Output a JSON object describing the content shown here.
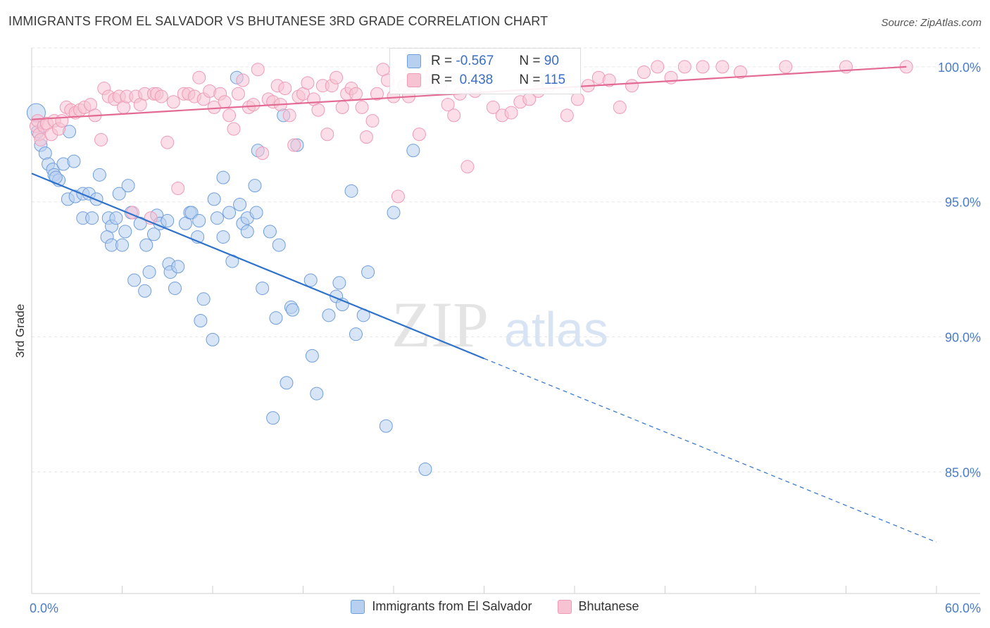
{
  "title": "IMMIGRANTS FROM EL SALVADOR VS BHUTANESE 3RD GRADE CORRELATION CHART",
  "source": "Source: ZipAtlas.com",
  "watermark": {
    "zip": "ZIP",
    "atlas": "atlas"
  },
  "colors": {
    "blue_fill": "#b8d0f0",
    "blue_stroke": "#6f9edb",
    "blue_line": "#2f72cc",
    "pink_fill": "#f7c3d3",
    "pink_stroke": "#ee9bb6",
    "pink_line": "#e36b93",
    "tick": "#4a7cc9",
    "grid": "#e6e6e6"
  },
  "legend_box": {
    "rows": [
      {
        "r_label": "R =",
        "r_value": "-0.567",
        "n_label": "N =",
        "n_value": "90"
      },
      {
        "r_label": "R =",
        "r_value": " 0.438",
        "n_label": "N =",
        "n_value": "115"
      }
    ]
  },
  "chart_data": {
    "type": "scatter",
    "title": "IMMIGRANTS FROM EL SALVADOR VS BHUTANESE 3RD GRADE CORRELATION CHART",
    "xlabel": "",
    "ylabel": "3rd Grade",
    "xlim": [
      0,
      60
    ],
    "ylim": [
      80.5,
      100.7
    ],
    "x_tick_labels": [
      "0.0%",
      "60.0%"
    ],
    "y_ticks": [
      85,
      90,
      95,
      100
    ],
    "y_tick_labels": [
      "85.0%",
      "90.0%",
      "95.0%",
      "100.0%"
    ],
    "grid": "horizontal dashed",
    "legend": "bottom-center",
    "series": [
      {
        "name": "Immigrants from El Salvador",
        "color": "blue",
        "R": -0.567,
        "N": 90,
        "trend": {
          "solid": [
            [
              0,
              96.05
            ],
            [
              30,
              89.2
            ]
          ],
          "dashed": [
            [
              30,
              89.2
            ],
            [
              60,
              82.4
            ]
          ]
        },
        "points": [
          [
            0.3,
            98.3
          ],
          [
            0.4,
            97.6
          ],
          [
            0.6,
            97.1
          ],
          [
            0.9,
            96.8
          ],
          [
            1.1,
            96.4
          ],
          [
            1.4,
            96.2
          ],
          [
            1.5,
            96.0
          ],
          [
            1.8,
            95.8
          ],
          [
            1.6,
            95.9
          ],
          [
            2.1,
            96.4
          ],
          [
            2.8,
            96.5
          ],
          [
            2.4,
            95.1
          ],
          [
            2.9,
            95.2
          ],
          [
            3.4,
            95.3
          ],
          [
            3.8,
            95.3
          ],
          [
            4.3,
            95.1
          ],
          [
            3.4,
            94.4
          ],
          [
            4.0,
            94.4
          ],
          [
            4.5,
            96.0
          ],
          [
            5.1,
            94.4
          ],
          [
            5.3,
            94.1
          ],
          [
            5.6,
            94.4
          ],
          [
            5.0,
            93.7
          ],
          [
            5.3,
            93.4
          ],
          [
            6.0,
            93.4
          ],
          [
            6.2,
            93.9
          ],
          [
            5.8,
            95.3
          ],
          [
            6.4,
            95.6
          ],
          [
            6.6,
            94.6
          ],
          [
            7.2,
            94.2
          ],
          [
            7.6,
            93.4
          ],
          [
            8.1,
            93.8
          ],
          [
            8.3,
            94.5
          ],
          [
            8.5,
            94.2
          ],
          [
            9.0,
            94.3
          ],
          [
            9.1,
            92.7
          ],
          [
            9.2,
            92.4
          ],
          [
            9.5,
            91.8
          ],
          [
            9.7,
            92.6
          ],
          [
            7.8,
            92.4
          ],
          [
            6.8,
            92.1
          ],
          [
            7.5,
            91.7
          ],
          [
            10.2,
            94.2
          ],
          [
            10.5,
            94.6
          ],
          [
            10.6,
            94.6
          ],
          [
            11.1,
            94.3
          ],
          [
            11.0,
            93.7
          ],
          [
            11.4,
            91.4
          ],
          [
            11.2,
            90.6
          ],
          [
            12.0,
            89.9
          ],
          [
            12.1,
            95.1
          ],
          [
            12.3,
            94.4
          ],
          [
            12.7,
            95.9
          ],
          [
            12.7,
            93.7
          ],
          [
            13.1,
            94.6
          ],
          [
            13.3,
            92.8
          ],
          [
            13.6,
            99.6
          ],
          [
            13.8,
            94.9
          ],
          [
            14.0,
            94.2
          ],
          [
            14.3,
            94.4
          ],
          [
            14.3,
            93.9
          ],
          [
            14.8,
            95.6
          ],
          [
            14.9,
            94.6
          ],
          [
            15.0,
            96.9
          ],
          [
            15.3,
            91.8
          ],
          [
            15.8,
            93.9
          ],
          [
            16.0,
            87.0
          ],
          [
            16.2,
            90.7
          ],
          [
            16.4,
            93.4
          ],
          [
            16.7,
            98.2
          ],
          [
            16.9,
            88.3
          ],
          [
            17.2,
            91.1
          ],
          [
            17.3,
            91.0
          ],
          [
            17.6,
            97.1
          ],
          [
            18.5,
            92.1
          ],
          [
            18.6,
            89.3
          ],
          [
            18.9,
            87.9
          ],
          [
            19.7,
            90.8
          ],
          [
            20.2,
            91.5
          ],
          [
            20.4,
            92.0
          ],
          [
            20.6,
            91.2
          ],
          [
            21.2,
            95.4
          ],
          [
            21.5,
            90.1
          ],
          [
            22.0,
            90.8
          ],
          [
            22.3,
            92.4
          ],
          [
            23.5,
            86.7
          ],
          [
            24.0,
            94.6
          ],
          [
            25.3,
            96.9
          ],
          [
            26.1,
            85.1
          ],
          [
            2.5,
            97.6
          ]
        ]
      },
      {
        "name": "Bhutanese",
        "color": "pink",
        "R": 0.438,
        "N": 115,
        "trend": {
          "solid": [
            [
              0,
              98.05
            ],
            [
              58,
              100.0
            ]
          ]
        },
        "points": [
          [
            0.3,
            97.8
          ],
          [
            0.4,
            98.0
          ],
          [
            0.5,
            97.5
          ],
          [
            0.6,
            97.3
          ],
          [
            0.8,
            97.8
          ],
          [
            1.0,
            97.9
          ],
          [
            1.3,
            97.5
          ],
          [
            1.5,
            98.0
          ],
          [
            1.8,
            97.7
          ],
          [
            2.0,
            98.0
          ],
          [
            2.3,
            98.5
          ],
          [
            2.6,
            98.4
          ],
          [
            2.9,
            98.3
          ],
          [
            3.2,
            98.4
          ],
          [
            3.5,
            98.5
          ],
          [
            3.9,
            98.6
          ],
          [
            4.2,
            98.2
          ],
          [
            4.6,
            97.3
          ],
          [
            4.8,
            99.2
          ],
          [
            5.1,
            98.9
          ],
          [
            5.5,
            98.8
          ],
          [
            5.8,
            98.9
          ],
          [
            6.1,
            98.5
          ],
          [
            6.3,
            98.9
          ],
          [
            6.7,
            94.6
          ],
          [
            6.9,
            98.9
          ],
          [
            7.2,
            98.6
          ],
          [
            7.5,
            99.0
          ],
          [
            7.9,
            94.4
          ],
          [
            8.1,
            99.0
          ],
          [
            8.3,
            99.0
          ],
          [
            8.6,
            98.9
          ],
          [
            9.0,
            97.2
          ],
          [
            9.4,
            98.7
          ],
          [
            9.7,
            95.5
          ],
          [
            10.1,
            99.0
          ],
          [
            10.4,
            99.0
          ],
          [
            10.8,
            98.9
          ],
          [
            11.1,
            99.6
          ],
          [
            11.4,
            98.8
          ],
          [
            11.8,
            99.1
          ],
          [
            12.1,
            98.5
          ],
          [
            12.5,
            99.0
          ],
          [
            12.8,
            98.7
          ],
          [
            13.1,
            98.2
          ],
          [
            13.4,
            97.7
          ],
          [
            13.7,
            99.0
          ],
          [
            14.0,
            99.5
          ],
          [
            14.4,
            98.5
          ],
          [
            14.7,
            98.6
          ],
          [
            15.0,
            99.9
          ],
          [
            15.3,
            96.8
          ],
          [
            15.7,
            98.8
          ],
          [
            16.0,
            98.7
          ],
          [
            16.3,
            99.3
          ],
          [
            16.5,
            98.6
          ],
          [
            16.8,
            99.2
          ],
          [
            17.1,
            98.2
          ],
          [
            17.4,
            97.1
          ],
          [
            17.7,
            98.9
          ],
          [
            18.0,
            99.0
          ],
          [
            18.3,
            99.4
          ],
          [
            18.7,
            98.8
          ],
          [
            19.0,
            98.4
          ],
          [
            19.3,
            99.3
          ],
          [
            19.6,
            97.5
          ],
          [
            19.9,
            99.3
          ],
          [
            20.2,
            99.6
          ],
          [
            20.6,
            98.5
          ],
          [
            20.9,
            99.0
          ],
          [
            21.2,
            99.2
          ],
          [
            21.5,
            99.0
          ],
          [
            21.9,
            98.5
          ],
          [
            22.2,
            97.4
          ],
          [
            22.6,
            98.0
          ],
          [
            22.9,
            99.0
          ],
          [
            23.3,
            99.9
          ],
          [
            23.6,
            99.5
          ],
          [
            24.0,
            98.9
          ],
          [
            24.3,
            95.2
          ],
          [
            24.7,
            99.3
          ],
          [
            25.0,
            98.9
          ],
          [
            25.4,
            99.4
          ],
          [
            25.7,
            97.5
          ],
          [
            26.1,
            99.4
          ],
          [
            26.6,
            99.8
          ],
          [
            27.1,
            99.3
          ],
          [
            27.6,
            98.6
          ],
          [
            28.0,
            98.2
          ],
          [
            28.4,
            99.0
          ],
          [
            28.9,
            96.3
          ],
          [
            29.4,
            99.1
          ],
          [
            30.0,
            99.8
          ],
          [
            30.6,
            98.5
          ],
          [
            31.2,
            98.2
          ],
          [
            31.8,
            98.3
          ],
          [
            32.4,
            98.7
          ],
          [
            33.0,
            98.8
          ],
          [
            33.6,
            99.1
          ],
          [
            34.3,
            99.3
          ],
          [
            34.9,
            99.7
          ],
          [
            35.5,
            98.2
          ],
          [
            36.2,
            98.8
          ],
          [
            36.9,
            99.3
          ],
          [
            37.6,
            99.6
          ],
          [
            38.3,
            99.5
          ],
          [
            39.0,
            98.5
          ],
          [
            39.8,
            99.3
          ],
          [
            40.6,
            99.8
          ],
          [
            41.5,
            100.0
          ],
          [
            42.4,
            99.6
          ],
          [
            43.3,
            100.0
          ],
          [
            44.5,
            100.0
          ],
          [
            45.8,
            100.0
          ],
          [
            47.0,
            99.8
          ],
          [
            50.0,
            100.0
          ],
          [
            54.0,
            100.0
          ],
          [
            58.0,
            100.0
          ]
        ]
      }
    ]
  }
}
